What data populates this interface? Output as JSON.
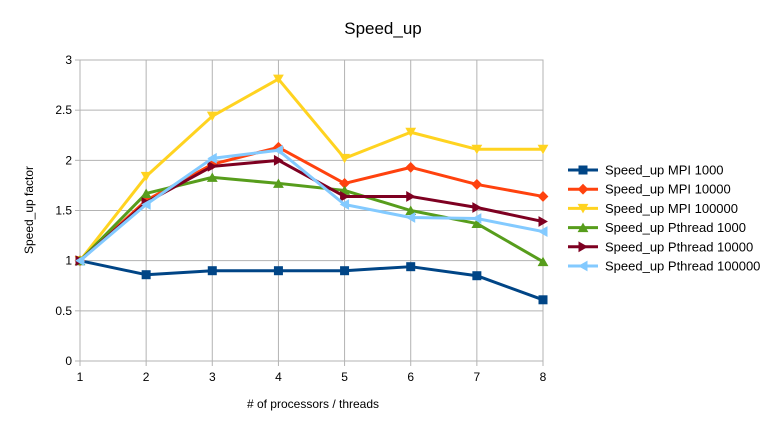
{
  "chart_data": {
    "type": "line",
    "title": "Speed_up",
    "xlabel": "# of processors / threads",
    "ylabel": "Speed_up factor",
    "x": [
      1,
      2,
      3,
      4,
      5,
      6,
      7,
      8
    ],
    "xlim": [
      1,
      8
    ],
    "ylim": [
      0,
      3
    ],
    "yticks": [
      "0",
      "0.5",
      "1",
      "1.5",
      "2",
      "2.5",
      "3"
    ],
    "xticks": [
      "1",
      "2",
      "3",
      "4",
      "5",
      "6",
      "7",
      "8"
    ],
    "grid": "horizontal and vertical",
    "legend_position": "right",
    "series": [
      {
        "name": "Speed_up MPI 1000",
        "color": "#004586",
        "marker": "square",
        "values": [
          1.0,
          0.86,
          0.9,
          0.9,
          0.9,
          0.94,
          0.85,
          0.61
        ]
      },
      {
        "name": "Speed_up MPI 10000",
        "color": "#ff420e",
        "marker": "diamond",
        "values": [
          1.0,
          1.6,
          1.96,
          2.13,
          1.77,
          1.93,
          1.76,
          1.64
        ]
      },
      {
        "name": "Speed_up MPI 100000",
        "color": "#ffd320",
        "marker": "triangle-down",
        "values": [
          1.0,
          1.84,
          2.44,
          2.81,
          2.02,
          2.28,
          2.11,
          2.11
        ]
      },
      {
        "name": "Speed_up Pthread 1000",
        "color": "#579d1c",
        "marker": "triangle-up",
        "values": [
          1.0,
          1.67,
          1.83,
          1.77,
          1.7,
          1.5,
          1.37,
          0.99
        ]
      },
      {
        "name": "Speed_up Pthread 10000",
        "color": "#7e0021",
        "marker": "triangle-right",
        "values": [
          1.0,
          1.58,
          1.94,
          2.0,
          1.64,
          1.64,
          1.53,
          1.39
        ]
      },
      {
        "name": "Speed_up Pthread 100000",
        "color": "#83caff",
        "marker": "triangle-left",
        "values": [
          1.0,
          1.56,
          2.02,
          2.1,
          1.56,
          1.43,
          1.42,
          1.29
        ]
      }
    ]
  }
}
